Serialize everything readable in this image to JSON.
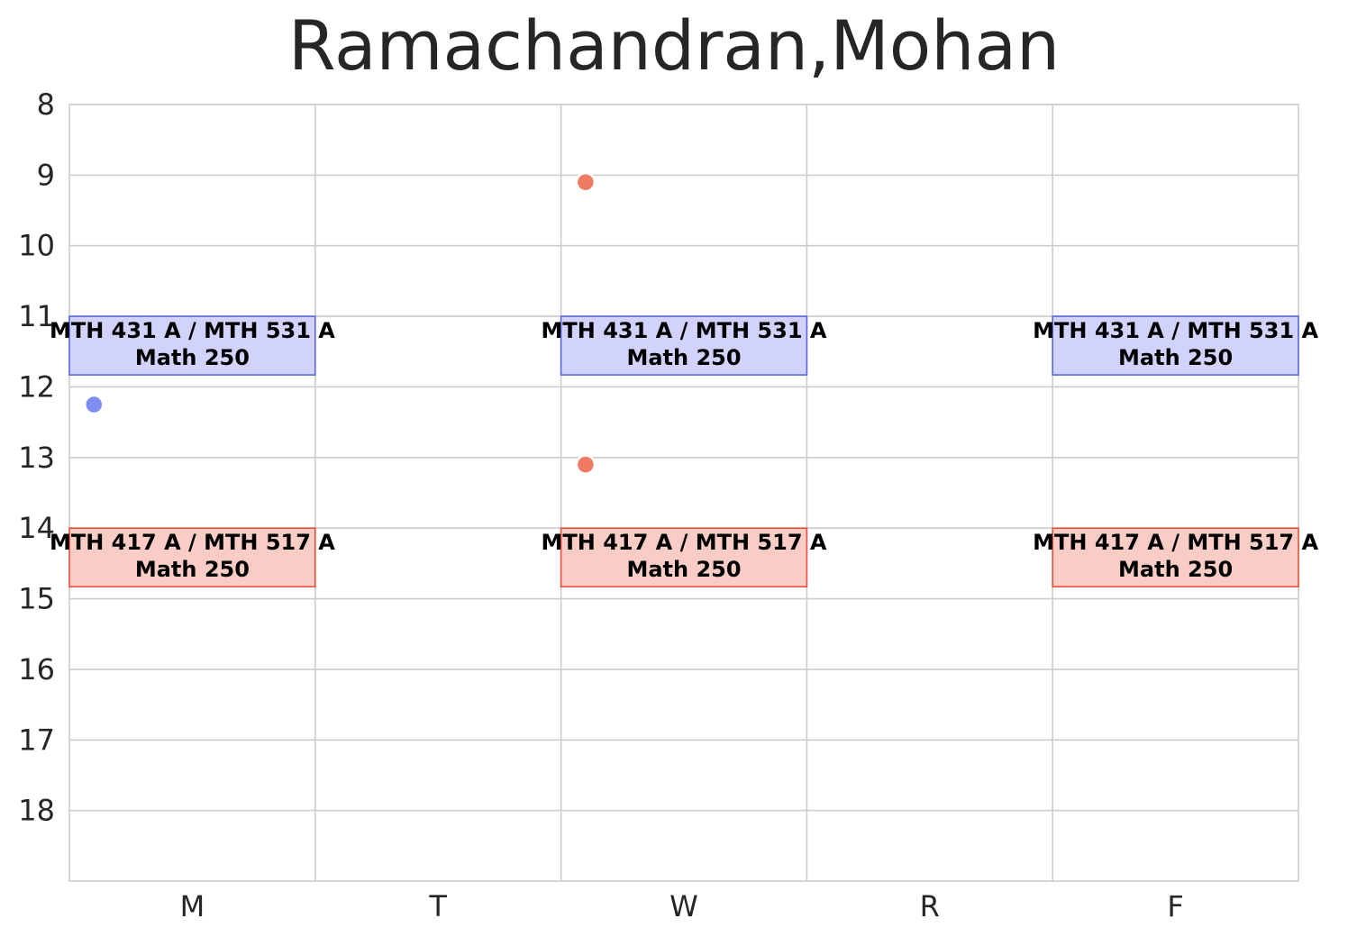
{
  "chart_data": {
    "type": "schedule",
    "title": "Ramachandran,Mohan",
    "days": [
      "M",
      "T",
      "W",
      "R",
      "F"
    ],
    "hours": [
      8,
      9,
      10,
      11,
      12,
      13,
      14,
      15,
      16,
      17,
      18
    ],
    "ylim": [
      8,
      19
    ],
    "y_inverted": true,
    "grid": true,
    "colors": {
      "blue_fill": "#d1d3fd",
      "blue_edge": "#5b67df",
      "red_fill": "#f9ccc5",
      "red_edge": "#e8503a",
      "blue_point": "#7f8cf1",
      "red_point": "#f07a62",
      "grid": "#cccccc"
    },
    "events": [
      {
        "day": "M",
        "start": 11.0,
        "end": 11.83,
        "line1": "MTH 431 A / MTH 531 A",
        "line2": "Math 250",
        "color": "blue"
      },
      {
        "day": "W",
        "start": 11.0,
        "end": 11.83,
        "line1": "MTH 431 A / MTH 531 A",
        "line2": "Math 250",
        "color": "blue"
      },
      {
        "day": "F",
        "start": 11.0,
        "end": 11.83,
        "line1": "MTH 431 A / MTH 531 A",
        "line2": "Math 250",
        "color": "blue"
      },
      {
        "day": "M",
        "start": 14.0,
        "end": 14.83,
        "line1": "MTH 417 A / MTH 517 A",
        "line2": "Math 250",
        "color": "red"
      },
      {
        "day": "W",
        "start": 14.0,
        "end": 14.83,
        "line1": "MTH 417 A / MTH 517 A",
        "line2": "Math 250",
        "color": "red"
      },
      {
        "day": "F",
        "start": 14.0,
        "end": 14.83,
        "line1": "MTH 417 A / MTH 517 A",
        "line2": "Math 250",
        "color": "red"
      }
    ],
    "points": [
      {
        "day": "M",
        "offset": 0.1,
        "time": 12.25,
        "color": "blue"
      },
      {
        "day": "W",
        "offset": 0.1,
        "time": 9.1,
        "color": "red"
      },
      {
        "day": "W",
        "offset": 0.1,
        "time": 13.1,
        "color": "red"
      }
    ]
  }
}
